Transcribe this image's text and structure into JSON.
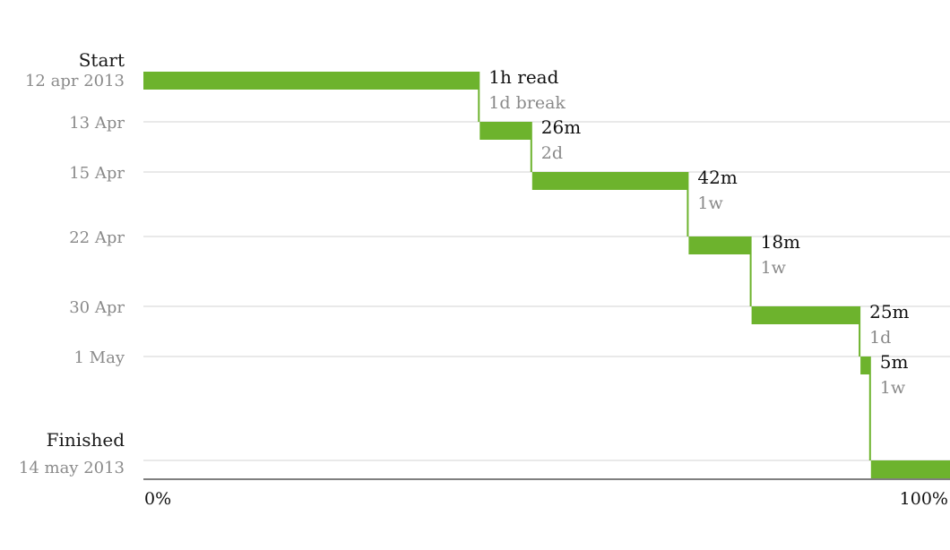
{
  "chart_data": {
    "type": "step-timeline",
    "colors": {
      "bar": "#6db32d",
      "grid": "#dcdcdc",
      "axis": "#333333"
    },
    "x_axis": {
      "min_label": "0%",
      "max_label": "100%",
      "range": [
        0,
        100
      ]
    },
    "start": {
      "label": "Start",
      "date": "12 apr 2013"
    },
    "finish": {
      "label": "Finished",
      "date": "14 may 2013"
    },
    "date_ticks": [
      "13 Apr",
      "15 Apr",
      "22 Apr",
      "30 Apr",
      "1 May"
    ],
    "sessions": [
      {
        "duration": "1h read",
        "gap_after": "1d break",
        "progress_start": 0,
        "progress_end": 41.7
      },
      {
        "duration": "26m",
        "gap_after": "2d",
        "progress_start": 41.7,
        "progress_end": 48.2
      },
      {
        "duration": "42m",
        "gap_after": "1w",
        "progress_start": 48.2,
        "progress_end": 67.6
      },
      {
        "duration": "18m",
        "gap_after": "1w",
        "progress_start": 67.6,
        "progress_end": 75.4
      },
      {
        "duration": "25m",
        "gap_after": "1d",
        "progress_start": 75.4,
        "progress_end": 88.9
      },
      {
        "duration": "5m",
        "gap_after": "1w",
        "progress_start": 88.9,
        "progress_end": 90.2
      },
      {
        "duration": "",
        "gap_after": "",
        "progress_start": 90.2,
        "progress_end": 100
      }
    ]
  }
}
